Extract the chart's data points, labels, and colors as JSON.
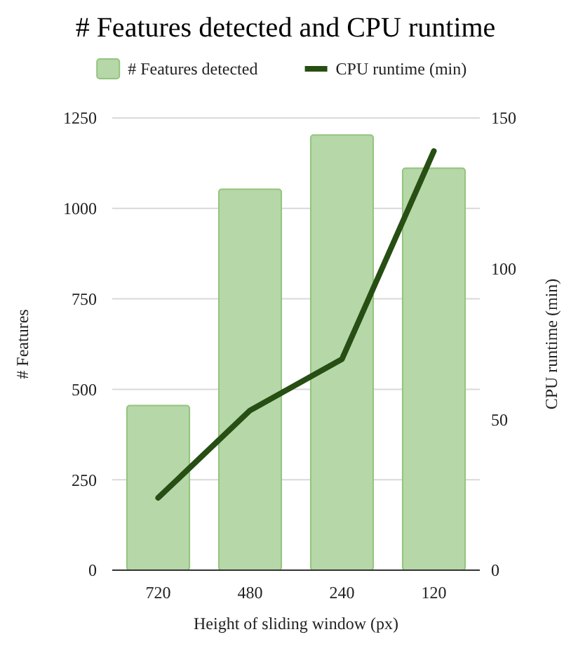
{
  "chart_data": {
    "type": "bar",
    "title": "# Features detected and CPU runtime",
    "xlabel": "Height of sliding window (px)",
    "ylabel": "# Features",
    "y2label": "CPU runtime (min)",
    "categories": [
      "720",
      "480",
      "240",
      "120"
    ],
    "series": [
      {
        "name": "# Features detected",
        "color": "#b6d7a8",
        "values": [
          455,
          1053,
          1203,
          1111
        ]
      },
      {
        "name": "CPU runtime (min)",
        "type": "line",
        "axis": "y2",
        "color": "#274e13",
        "values": [
          24,
          53,
          70,
          139
        ]
      }
    ],
    "ylim": [
      0,
      1250
    ],
    "yticks": [
      0,
      250,
      500,
      750,
      1000,
      1250
    ],
    "y2lim": [
      0,
      150
    ],
    "y2ticks": [
      0,
      50,
      100,
      150
    ],
    "grid": "y",
    "legend": "top"
  }
}
